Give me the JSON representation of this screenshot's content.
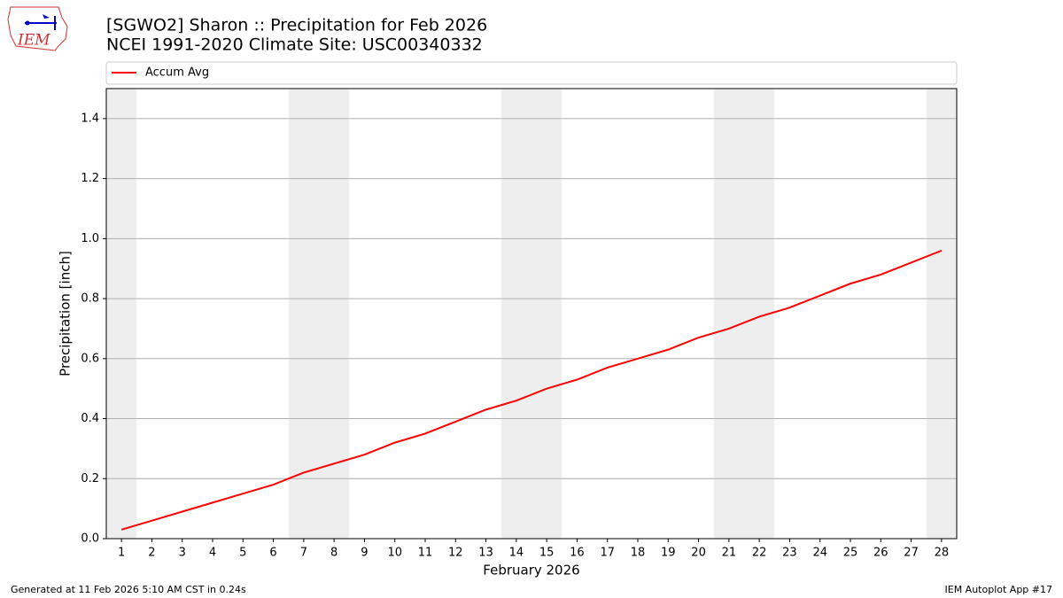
{
  "logo_text": "IEM",
  "footer_left": "Generated at 11 Feb 2026 5:10 AM CST in 0.24s",
  "footer_right": "IEM Autoplot App #17",
  "chart_data": {
    "type": "line",
    "title": "[SGWO2] Sharon :: Precipitation for Feb 2026",
    "subtitle": "NCEI 1991-2020 Climate Site: USC00340332",
    "xlabel": "February 2026",
    "ylabel": "Precipitation [inch]",
    "x": [
      1,
      2,
      3,
      4,
      5,
      6,
      7,
      8,
      9,
      10,
      11,
      12,
      13,
      14,
      15,
      16,
      17,
      18,
      19,
      20,
      21,
      22,
      23,
      24,
      25,
      26,
      27,
      28
    ],
    "series": [
      {
        "name": "Accum Avg",
        "color": "#ff0000",
        "values": [
          0.03,
          0.06,
          0.09,
          0.12,
          0.15,
          0.18,
          0.22,
          0.25,
          0.28,
          0.32,
          0.35,
          0.39,
          0.43,
          0.46,
          0.5,
          0.53,
          0.57,
          0.6,
          0.63,
          0.67,
          0.7,
          0.74,
          0.77,
          0.81,
          0.85,
          0.88,
          0.92,
          0.96
        ]
      }
    ],
    "xlim": [
      0.5,
      28.5
    ],
    "xticks": [
      1,
      2,
      3,
      4,
      5,
      6,
      7,
      8,
      9,
      10,
      11,
      12,
      13,
      14,
      15,
      16,
      17,
      18,
      19,
      20,
      21,
      22,
      23,
      24,
      25,
      26,
      27,
      28
    ],
    "ylim": [
      0,
      1.5
    ],
    "yticks": [
      {
        "value": 0,
        "label": "0.0"
      },
      0.2,
      0.4,
      0.6,
      0.8,
      {
        "value": 1,
        "label": "1.0"
      },
      1.2,
      1.4
    ],
    "grid": true,
    "legend": "top",
    "weekend_bands": [
      [
        0.5,
        1.5
      ],
      [
        6.5,
        8.5
      ],
      [
        13.5,
        15.5
      ],
      [
        20.5,
        22.5
      ],
      [
        27.5,
        28.5
      ]
    ],
    "band_color": "#eeeeee"
  }
}
